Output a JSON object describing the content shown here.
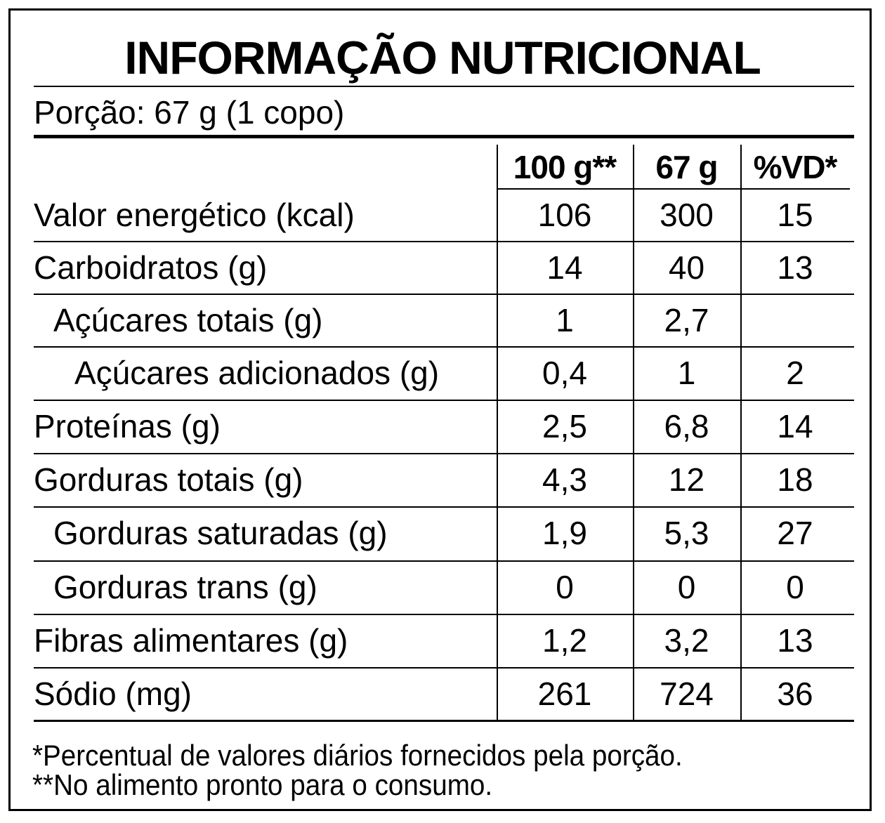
{
  "title": "INFORMAÇÃO NUTRICIONAL",
  "portion": "Porção: 67 g (1 copo)",
  "columns": [
    "100 g**",
    "67 g",
    "%VD*"
  ],
  "rows": [
    {
      "label": "Valor energético (kcal)",
      "indent": 0,
      "per100": "106",
      "perPortion": "300",
      "vd": "15"
    },
    {
      "label": "Carboidratos (g)",
      "indent": 0,
      "per100": "14",
      "perPortion": "40",
      "vd": "13"
    },
    {
      "label": "Açúcares totais (g)",
      "indent": 1,
      "per100": "1",
      "perPortion": "2,7",
      "vd": ""
    },
    {
      "label": "Açúcares adicionados (g)",
      "indent": 2,
      "per100": "0,4",
      "perPortion": "1",
      "vd": "2"
    },
    {
      "label": "Proteínas (g)",
      "indent": 0,
      "per100": "2,5",
      "perPortion": "6,8",
      "vd": "14"
    },
    {
      "label": "Gorduras totais (g)",
      "indent": 0,
      "per100": "4,3",
      "perPortion": "12",
      "vd": "18"
    },
    {
      "label": "Gorduras saturadas (g)",
      "indent": 1,
      "per100": "1,9",
      "perPortion": "5,3",
      "vd": "27"
    },
    {
      "label": "Gorduras trans (g)",
      "indent": 1,
      "per100": "0",
      "perPortion": "0",
      "vd": "0"
    },
    {
      "label": "Fibras alimentares (g)",
      "indent": 0,
      "per100": "1,2",
      "perPortion": "3,2",
      "vd": "13"
    },
    {
      "label": "Sódio (mg)",
      "indent": 0,
      "per100": "261",
      "perPortion": "724",
      "vd": "36"
    }
  ],
  "footnotes": [
    "*Percentual de valores diários fornecidos pela porção.",
    "**No alimento pronto para o consumo."
  ]
}
